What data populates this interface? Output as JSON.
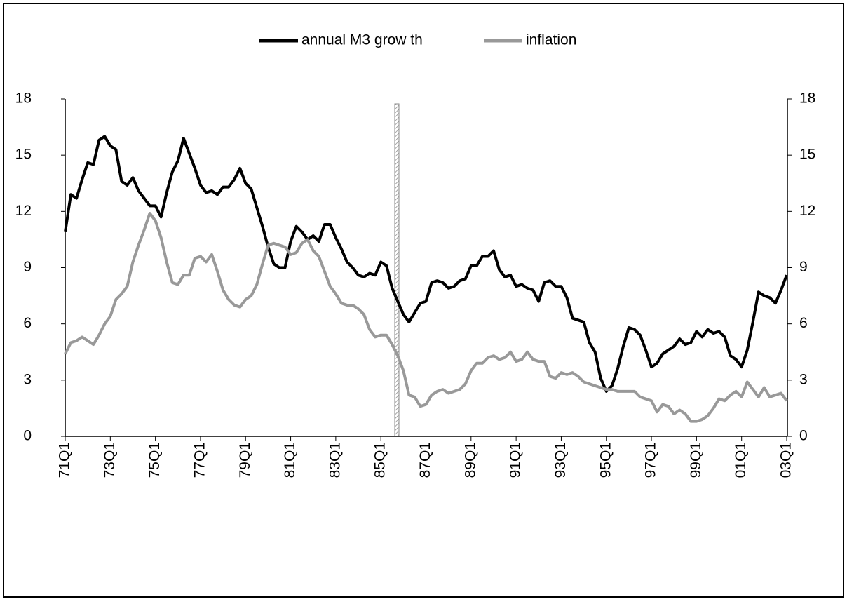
{
  "chart_data": {
    "type": "line",
    "categories": [
      "71Q1",
      null,
      null,
      null,
      null,
      null,
      null,
      null,
      "73Q1",
      null,
      null,
      null,
      null,
      null,
      null,
      null,
      "75Q1",
      null,
      null,
      null,
      null,
      null,
      null,
      null,
      "77Q1",
      null,
      null,
      null,
      null,
      null,
      null,
      null,
      "79Q1",
      null,
      null,
      null,
      null,
      null,
      null,
      null,
      "81Q1",
      null,
      null,
      null,
      null,
      null,
      null,
      null,
      "83Q1",
      null,
      null,
      null,
      null,
      null,
      null,
      null,
      "85Q1",
      null,
      null,
      null,
      null,
      null,
      null,
      null,
      "87Q1",
      null,
      null,
      null,
      null,
      null,
      null,
      null,
      "89Q1",
      null,
      null,
      null,
      null,
      null,
      null,
      null,
      "91Q1",
      null,
      null,
      null,
      null,
      null,
      null,
      null,
      "93Q1",
      null,
      null,
      null,
      null,
      null,
      null,
      null,
      "95Q1",
      null,
      null,
      null,
      null,
      null,
      null,
      null,
      "97Q1",
      null,
      null,
      null,
      null,
      null,
      null,
      null,
      "99Q1",
      null,
      null,
      null,
      null,
      null,
      null,
      null,
      "01Q1",
      null,
      null,
      null,
      null,
      null,
      null,
      null,
      "03Q1"
    ],
    "series": [
      {
        "name": "annual M3 grow th",
        "color": "#000000",
        "values": [
          10.9,
          12.9,
          12.7,
          13.7,
          14.6,
          14.5,
          15.8,
          16.0,
          15.5,
          15.3,
          13.6,
          13.4,
          13.8,
          13.1,
          12.7,
          12.3,
          12.3,
          11.7,
          13.0,
          14.1,
          14.7,
          15.9,
          15.1,
          14.3,
          13.4,
          13.0,
          13.1,
          12.9,
          13.3,
          13.3,
          13.7,
          14.3,
          13.5,
          13.2,
          12.2,
          11.2,
          10.1,
          9.2,
          9.0,
          9.0,
          10.4,
          11.2,
          10.9,
          10.5,
          10.7,
          10.4,
          11.3,
          11.3,
          10.6,
          10.0,
          9.3,
          9.0,
          8.6,
          8.5,
          8.7,
          8.6,
          9.3,
          9.1,
          7.9,
          7.2,
          6.5,
          6.1,
          6.6,
          7.1,
          7.2,
          8.2,
          8.3,
          8.2,
          7.9,
          8.0,
          8.3,
          8.4,
          9.1,
          9.1,
          9.6,
          9.6,
          9.9,
          8.9,
          8.5,
          8.6,
          8.0,
          8.1,
          7.9,
          7.8,
          7.2,
          8.2,
          8.3,
          8.0,
          8.0,
          7.4,
          6.3,
          6.2,
          6.1,
          5.0,
          4.5,
          3.1,
          2.4,
          2.7,
          3.6,
          4.8,
          5.8,
          5.7,
          5.4,
          4.6,
          3.7,
          3.9,
          4.4,
          4.6,
          4.8,
          5.2,
          4.9,
          5.0,
          5.6,
          5.3,
          5.7,
          5.5,
          5.6,
          5.3,
          4.3,
          4.1,
          3.7,
          4.6,
          6.1,
          7.7,
          7.5,
          7.4,
          7.1,
          7.8,
          8.6
        ]
      },
      {
        "name": "inflation",
        "color": "#999999",
        "values": [
          4.4,
          5.0,
          5.1,
          5.3,
          5.1,
          4.9,
          5.4,
          6.0,
          6.4,
          7.3,
          7.6,
          8.0,
          9.3,
          10.2,
          11.0,
          11.9,
          11.5,
          10.6,
          9.3,
          8.2,
          8.1,
          8.6,
          8.6,
          9.5,
          9.6,
          9.3,
          9.7,
          8.8,
          7.8,
          7.3,
          7.0,
          6.9,
          7.3,
          7.5,
          8.1,
          9.2,
          10.2,
          10.3,
          10.2,
          10.1,
          9.7,
          9.8,
          10.3,
          10.5,
          9.9,
          9.6,
          8.8,
          8.0,
          7.6,
          7.1,
          7.0,
          7.0,
          6.8,
          6.5,
          5.7,
          5.3,
          5.4,
          5.4,
          4.9,
          4.3,
          3.5,
          2.2,
          2.1,
          1.6,
          1.7,
          2.2,
          2.4,
          2.5,
          2.3,
          2.4,
          2.5,
          2.8,
          3.5,
          3.9,
          3.9,
          4.2,
          4.3,
          4.1,
          4.2,
          4.5,
          4.0,
          4.1,
          4.5,
          4.1,
          4.0,
          4.0,
          3.2,
          3.1,
          3.4,
          3.3,
          3.4,
          3.2,
          2.9,
          2.8,
          2.7,
          2.6,
          2.5,
          2.5,
          2.4,
          2.4,
          2.4,
          2.4,
          2.1,
          2.0,
          1.9,
          1.3,
          1.7,
          1.6,
          1.2,
          1.4,
          1.2,
          0.8,
          0.8,
          0.9,
          1.1,
          1.5,
          2.0,
          1.9,
          2.2,
          2.4,
          2.1,
          2.9,
          2.5,
          2.1,
          2.6,
          2.1,
          2.2,
          2.3,
          1.9
        ]
      }
    ],
    "ylim": [
      0,
      18
    ],
    "yticks": [
      0,
      3,
      6,
      9,
      12,
      15,
      18
    ],
    "y2lim": [
      0,
      18
    ],
    "y2ticks": [
      0,
      3,
      6,
      9,
      12,
      15,
      18
    ],
    "legend": "top"
  }
}
